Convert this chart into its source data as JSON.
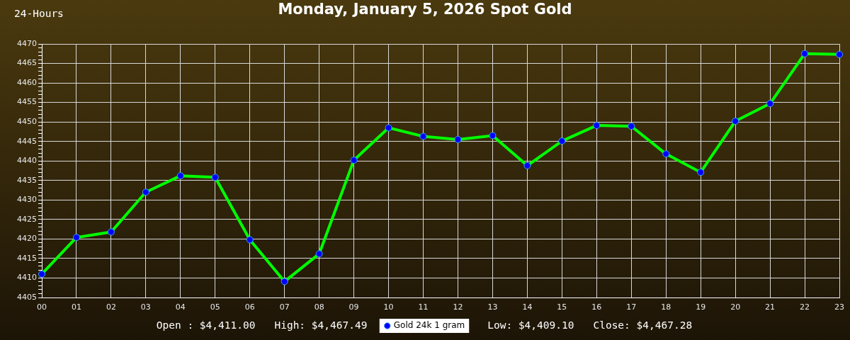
{
  "chart_data": {
    "type": "line",
    "title": "Monday, January 5, 2026 Spot Gold",
    "categories": [
      "00",
      "01",
      "02",
      "03",
      "04",
      "05",
      "06",
      "07",
      "08",
      "09",
      "10",
      "11",
      "12",
      "13",
      "14",
      "15",
      "16",
      "17",
      "18",
      "19",
      "20",
      "21",
      "22",
      "23"
    ],
    "series": [
      {
        "name": "Gold 24k 1 gram",
        "color": "#00ff00",
        "values": [
          4411.0,
          4420.4,
          4421.8,
          4432.0,
          4436.2,
          4435.8,
          4419.8,
          4409.1,
          4416.2,
          4440.2,
          4448.5,
          4446.3,
          4445.5,
          4446.5,
          4438.8,
          4445.1,
          4449.1,
          4448.9,
          4441.8,
          4437.1,
          4450.2,
          4454.7,
          4467.5,
          4467.3
        ]
      }
    ],
    "ylim": [
      4405,
      4470
    ],
    "yticks": [
      4405,
      {
        "value": 4406,
        "label": null
      },
      {
        "value": 4407,
        "label": null
      },
      {
        "value": 4408,
        "label": null
      },
      {
        "value": 4409,
        "label": null
      },
      4410,
      {
        "value": 4411,
        "label": null
      },
      {
        "value": 4412,
        "label": null
      },
      {
        "value": 4413,
        "label": null
      },
      {
        "value": 4414,
        "label": null
      },
      4415,
      {
        "value": 4416,
        "label": null
      },
      {
        "value": 4417,
        "label": null
      },
      {
        "value": 4418,
        "label": null
      },
      {
        "value": 4419,
        "label": null
      },
      4420,
      {
        "value": 4421,
        "label": null
      },
      {
        "value": 4422,
        "label": null
      },
      {
        "value": 4423,
        "label": null
      },
      {
        "value": 4424,
        "label": null
      },
      4425,
      {
        "value": 4426,
        "label": null
      },
      {
        "value": 4427,
        "label": null
      },
      {
        "value": 4428,
        "label": null
      },
      {
        "value": 4429,
        "label": null
      },
      4430,
      {
        "value": 4431,
        "label": null
      },
      {
        "value": 4432,
        "label": null
      },
      {
        "value": 4433,
        "label": null
      },
      {
        "value": 4434,
        "label": null
      },
      4435,
      {
        "value": 4436,
        "label": null
      },
      {
        "value": 4437,
        "label": null
      },
      {
        "value": 4438,
        "label": null
      },
      {
        "value": 4439,
        "label": null
      },
      4440,
      {
        "value": 4441,
        "label": null
      },
      {
        "value": 4442,
        "label": null
      },
      {
        "value": 4443,
        "label": null
      },
      {
        "value": 4444,
        "label": null
      },
      4445,
      {
        "value": 4446,
        "label": null
      },
      {
        "value": 4447,
        "label": null
      },
      {
        "value": 4448,
        "label": null
      },
      {
        "value": 4449,
        "label": null
      },
      4450,
      {
        "value": 4451,
        "label": null
      },
      {
        "value": 4452,
        "label": null
      },
      {
        "value": 4453,
        "label": null
      },
      {
        "value": 4454,
        "label": null
      },
      4455,
      {
        "value": 4456,
        "label": null
      },
      {
        "value": 4457,
        "label": null
      },
      {
        "value": 4458,
        "label": null
      },
      {
        "value": 4459,
        "label": null
      },
      4460,
      {
        "value": 4461,
        "label": null
      },
      {
        "value": 4462,
        "label": null
      },
      {
        "value": 4463,
        "label": null
      },
      {
        "value": 4464,
        "label": null
      },
      4465,
      {
        "value": 4466,
        "label": null
      },
      {
        "value": 4467,
        "label": null
      },
      {
        "value": 4468,
        "label": null
      },
      {
        "value": 4469,
        "label": null
      },
      4470
    ],
    "grid": true,
    "legend": "bottom",
    "marker": "circle",
    "line_style": "solid",
    "annotations": [
      "24-Hours",
      "Open : $4,411.00",
      "High: $4,467.49",
      "Low: $4,409.10",
      "Close: $4,467.28"
    ]
  }
}
